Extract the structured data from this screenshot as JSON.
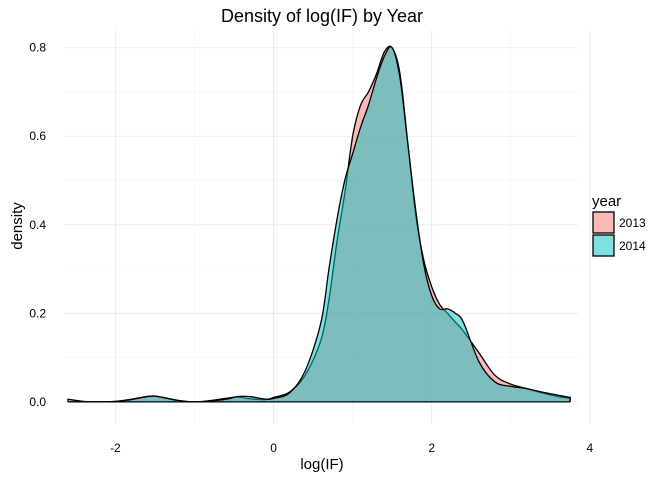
{
  "chart_data": {
    "type": "area",
    "title": "Density of log(IF) by Year",
    "xlabel": "log(IF)",
    "ylabel": "density",
    "xlim": [
      -2.65,
      3.85
    ],
    "ylim": [
      -0.05,
      0.84
    ],
    "x_ticks": [
      -2,
      0,
      2,
      4
    ],
    "x_tick_labels": [
      "-2",
      "0",
      "2",
      "4"
    ],
    "y_ticks": [
      0.0,
      0.2,
      0.4,
      0.6,
      0.8
    ],
    "y_tick_labels": [
      "0.0",
      "0.2",
      "0.4",
      "0.6",
      "0.8"
    ],
    "grid": true,
    "legend": {
      "title": "year",
      "position": "right"
    },
    "series": [
      {
        "name": "2013",
        "color": "#F8766D",
        "x": [
          -2.6,
          -2.4,
          -2.2,
          -2.0,
          -1.8,
          -1.6,
          -1.5,
          -1.4,
          -1.2,
          -1.0,
          -0.8,
          -0.6,
          -0.45,
          -0.3,
          -0.1,
          0.0,
          0.2,
          0.4,
          0.6,
          0.7,
          0.8,
          0.9,
          1.0,
          1.1,
          1.2,
          1.3,
          1.4,
          1.5,
          1.6,
          1.7,
          1.8,
          1.9,
          2.0,
          2.1,
          2.2,
          2.3,
          2.4,
          2.6,
          2.8,
          3.0,
          3.2,
          3.4,
          3.6,
          3.75
        ],
        "values": [
          0.006,
          0.001,
          0.0,
          0.001,
          0.006,
          0.012,
          0.013,
          0.01,
          0.003,
          0.0,
          0.003,
          0.008,
          0.011,
          0.007,
          0.005,
          0.01,
          0.022,
          0.06,
          0.14,
          0.23,
          0.36,
          0.47,
          0.6,
          0.67,
          0.7,
          0.74,
          0.79,
          0.8,
          0.74,
          0.58,
          0.42,
          0.32,
          0.26,
          0.22,
          0.2,
          0.18,
          0.16,
          0.11,
          0.06,
          0.04,
          0.03,
          0.02,
          0.012,
          0.008
        ]
      },
      {
        "name": "2014",
        "color": "#00BFC4",
        "x": [
          -2.6,
          -2.4,
          -2.2,
          -2.0,
          -1.8,
          -1.6,
          -1.5,
          -1.4,
          -1.2,
          -1.0,
          -0.8,
          -0.6,
          -0.45,
          -0.3,
          -0.1,
          0.0,
          0.2,
          0.4,
          0.6,
          0.7,
          0.8,
          0.9,
          1.0,
          1.1,
          1.2,
          1.3,
          1.4,
          1.5,
          1.6,
          1.7,
          1.8,
          1.9,
          2.0,
          2.1,
          2.2,
          2.3,
          2.4,
          2.6,
          2.8,
          3.0,
          3.2,
          3.4,
          3.6,
          3.75
        ],
        "values": [
          0.0,
          0.0,
          0.0,
          0.001,
          0.005,
          0.012,
          0.013,
          0.01,
          0.003,
          0.0,
          0.002,
          0.006,
          0.012,
          0.012,
          0.006,
          0.008,
          0.02,
          0.07,
          0.18,
          0.3,
          0.41,
          0.5,
          0.56,
          0.62,
          0.67,
          0.73,
          0.78,
          0.8,
          0.73,
          0.58,
          0.43,
          0.31,
          0.24,
          0.21,
          0.21,
          0.2,
          0.18,
          0.09,
          0.045,
          0.035,
          0.03,
          0.022,
          0.015,
          0.01
        ]
      }
    ]
  }
}
